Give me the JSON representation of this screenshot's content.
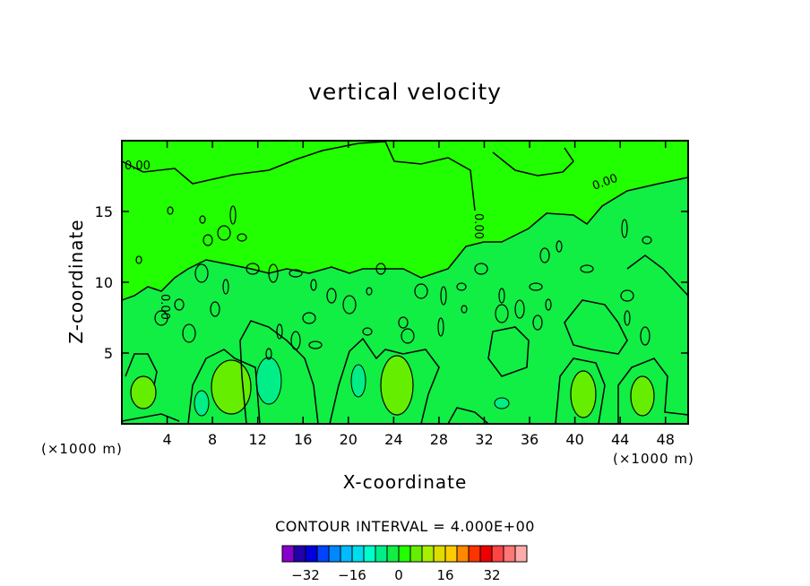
{
  "chart_data": {
    "type": "contour",
    "title": "vertical velocity",
    "xlabel": "X-coordinate",
    "ylabel": "Z-coordinate",
    "x_unit": "(×1000 m)",
    "z_unit": "(×1000 m)",
    "xlim": [
      0,
      50
    ],
    "ylim": [
      0,
      20
    ],
    "x_ticks": [
      "4",
      "8",
      "12",
      "16",
      "20",
      "24",
      "28",
      "32",
      "36",
      "40",
      "44",
      "48"
    ],
    "y_ticks": [
      "5",
      "10",
      "15"
    ],
    "contour_interval": "CONTOUR INTERVAL = 4.000E+00",
    "contour_labels": [
      "0.00",
      "0.00",
      "0.00",
      "0.00"
    ],
    "colorbar": {
      "tick_labels": [
        "-32",
        "-16",
        "0",
        "16",
        "32"
      ],
      "colors": [
        "#8800cc",
        "#2200aa",
        "#0000dd",
        "#0044ff",
        "#0088ff",
        "#00bbff",
        "#00ddee",
        "#00ffcc",
        "#00ee88",
        "#11ee44",
        "#22ff00",
        "#66ee00",
        "#aaee00",
        "#dddd00",
        "#ffcc00",
        "#ff8800",
        "#ff3300",
        "#ee0000",
        "#ff4444",
        "#ff7777",
        "#ffaaaa"
      ]
    },
    "field_colors": {
      "background": "#11ee44",
      "upper_region": "#22ff00",
      "updraft": "#66ee00",
      "downdraft": "#00ee88"
    }
  }
}
